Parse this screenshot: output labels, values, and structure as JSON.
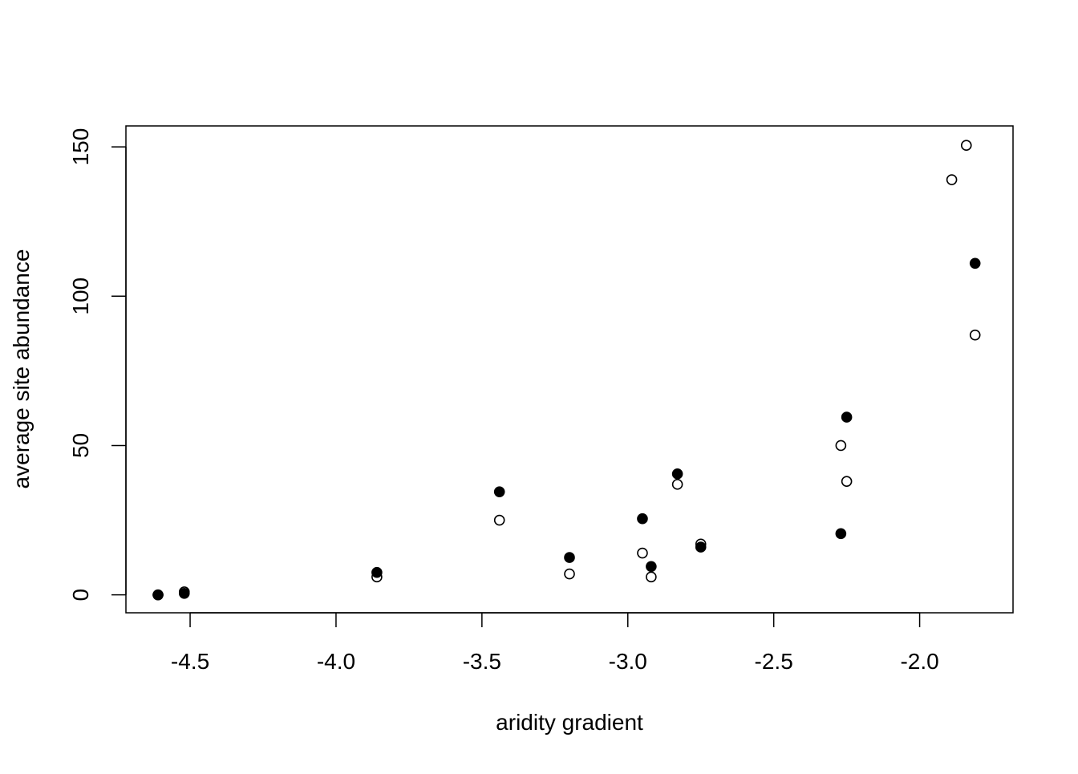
{
  "chart_data": {
    "type": "scatter",
    "title": "",
    "xlabel": "aridity gradient",
    "ylabel": "average site abundance",
    "xlim": [
      -4.72,
      -1.68
    ],
    "ylim": [
      -6.0,
      157.0
    ],
    "x_ticks": [
      -4.5,
      -4.0,
      -3.5,
      -3.0,
      -2.5,
      -2.0
    ],
    "x_tick_labels": [
      "-4.5",
      "-4.0",
      "-3.5",
      "-3.0",
      "-2.5",
      "-2.0"
    ],
    "y_ticks": [
      0,
      50,
      100,
      150
    ],
    "y_tick_labels": [
      "0",
      "50",
      "100",
      "150"
    ],
    "grid": false,
    "legend": null,
    "series": [
      {
        "marker": "open-circle",
        "color": "#000000",
        "points": [
          {
            "x": -4.61,
            "y": 0.0
          },
          {
            "x": -4.52,
            "y": 1.0
          },
          {
            "x": -3.86,
            "y": 6.0
          },
          {
            "x": -3.44,
            "y": 25.0
          },
          {
            "x": -3.2,
            "y": 7.0
          },
          {
            "x": -2.95,
            "y": 14.0
          },
          {
            "x": -2.92,
            "y": 6.0
          },
          {
            "x": -2.83,
            "y": 37.0
          },
          {
            "x": -2.75,
            "y": 17.0
          },
          {
            "x": -2.27,
            "y": 50.0
          },
          {
            "x": -2.25,
            "y": 38.0
          },
          {
            "x": -1.89,
            "y": 139.0
          },
          {
            "x": -1.84,
            "y": 150.5
          },
          {
            "x": -1.81,
            "y": 87.0
          }
        ]
      },
      {
        "marker": "filled-circle",
        "color": "#000000",
        "points": [
          {
            "x": -4.61,
            "y": 0.0
          },
          {
            "x": -4.52,
            "y": 0.5
          },
          {
            "x": -3.86,
            "y": 7.5
          },
          {
            "x": -3.44,
            "y": 34.5
          },
          {
            "x": -3.2,
            "y": 12.5
          },
          {
            "x": -2.95,
            "y": 25.5
          },
          {
            "x": -2.92,
            "y": 9.5
          },
          {
            "x": -2.83,
            "y": 40.5
          },
          {
            "x": -2.75,
            "y": 16.0
          },
          {
            "x": -2.27,
            "y": 20.5
          },
          {
            "x": -2.25,
            "y": 59.5
          },
          {
            "x": -1.81,
            "y": 111.0
          }
        ]
      }
    ]
  }
}
